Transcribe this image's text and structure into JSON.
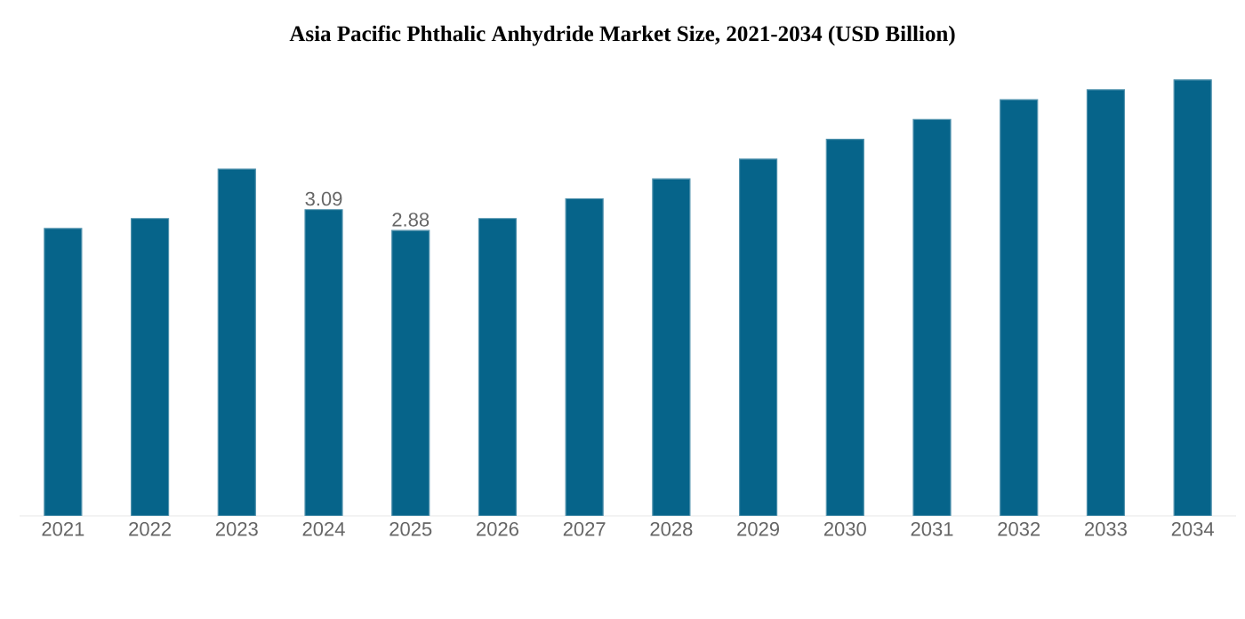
{
  "chart_data": {
    "type": "bar",
    "title": "Asia Pacific Phthalic Anhydride Market Size, 2021-2034 (USD Billion)",
    "categories": [
      "2021",
      "2022",
      "2023",
      "2024",
      "2025",
      "2026",
      "2027",
      "2028",
      "2029",
      "2030",
      "2031",
      "2032",
      "2033",
      "2034"
    ],
    "values": [
      2.9,
      3.0,
      3.5,
      3.09,
      2.88,
      3.0,
      3.2,
      3.4,
      3.6,
      3.8,
      4.0,
      4.2,
      4.3,
      4.4
    ],
    "value_labels": [
      null,
      null,
      null,
      "3.09",
      "2.88",
      null,
      null,
      null,
      null,
      null,
      null,
      null,
      null,
      null
    ],
    "color": "#06648a"
  }
}
